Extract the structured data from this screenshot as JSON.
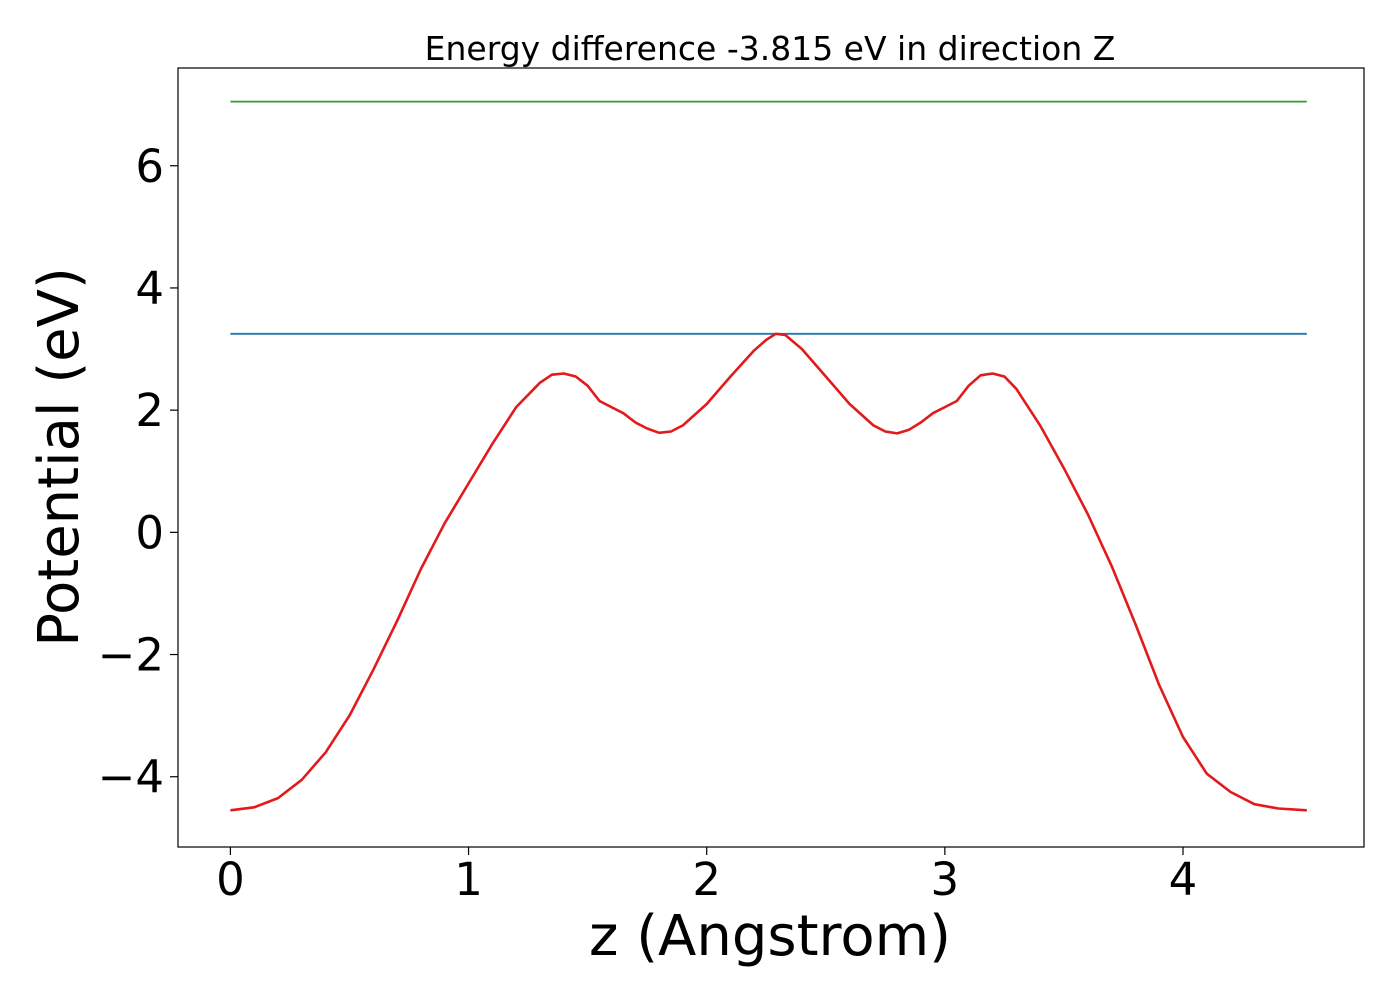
{
  "chart_data": {
    "type": "line",
    "title": "Energy difference -3.815 eV in direction Z",
    "xlabel": "z (Angstrom)",
    "ylabel": "Potential (eV)",
    "xlim": [
      -0.22,
      4.76
    ],
    "ylim": [
      -5.15,
      7.6
    ],
    "x_ticks": [
      0,
      1,
      2,
      3,
      4
    ],
    "x_tick_labels": [
      "0",
      "1",
      "2",
      "3",
      "4"
    ],
    "y_ticks": [
      -4,
      -2,
      0,
      2,
      4,
      6
    ],
    "y_tick_labels": [
      "−4",
      "−2",
      "0",
      "2",
      "4",
      "6"
    ],
    "grid": false,
    "series": [
      {
        "color": "#2ca02c",
        "x": [
          0,
          4.52
        ],
        "y": [
          7.05,
          7.05
        ]
      },
      {
        "color": "#1f77b4",
        "x": [
          0,
          4.52
        ],
        "y": [
          3.25,
          3.25
        ]
      },
      {
        "color": "#e31a1c",
        "x": [
          0,
          0.1,
          0.2,
          0.3,
          0.4,
          0.5,
          0.6,
          0.7,
          0.8,
          0.9,
          1.0,
          1.1,
          1.2,
          1.3,
          1.35,
          1.4,
          1.45,
          1.5,
          1.55,
          1.6,
          1.65,
          1.7,
          1.75,
          1.8,
          1.85,
          1.9,
          2.0,
          2.1,
          2.2,
          2.25,
          2.29,
          2.33,
          2.4,
          2.5,
          2.6,
          2.7,
          2.75,
          2.8,
          2.85,
          2.9,
          2.95,
          3.0,
          3.05,
          3.1,
          3.15,
          3.2,
          3.25,
          3.3,
          3.4,
          3.5,
          3.6,
          3.7,
          3.8,
          3.9,
          4.0,
          4.1,
          4.2,
          4.3,
          4.4,
          4.52
        ],
        "y": [
          -4.55,
          -4.5,
          -4.35,
          -4.05,
          -3.6,
          -3.0,
          -2.25,
          -1.45,
          -0.6,
          0.15,
          0.8,
          1.45,
          2.05,
          2.45,
          2.58,
          2.6,
          2.55,
          2.4,
          2.15,
          2.05,
          1.95,
          1.8,
          1.7,
          1.63,
          1.65,
          1.75,
          2.1,
          2.55,
          2.98,
          3.15,
          3.25,
          3.23,
          3.0,
          2.55,
          2.1,
          1.75,
          1.65,
          1.62,
          1.68,
          1.8,
          1.95,
          2.05,
          2.15,
          2.4,
          2.57,
          2.6,
          2.55,
          2.35,
          1.75,
          1.05,
          0.3,
          -0.55,
          -1.5,
          -2.5,
          -3.35,
          -3.95,
          -4.25,
          -4.45,
          -4.52,
          -4.55
        ]
      }
    ]
  }
}
